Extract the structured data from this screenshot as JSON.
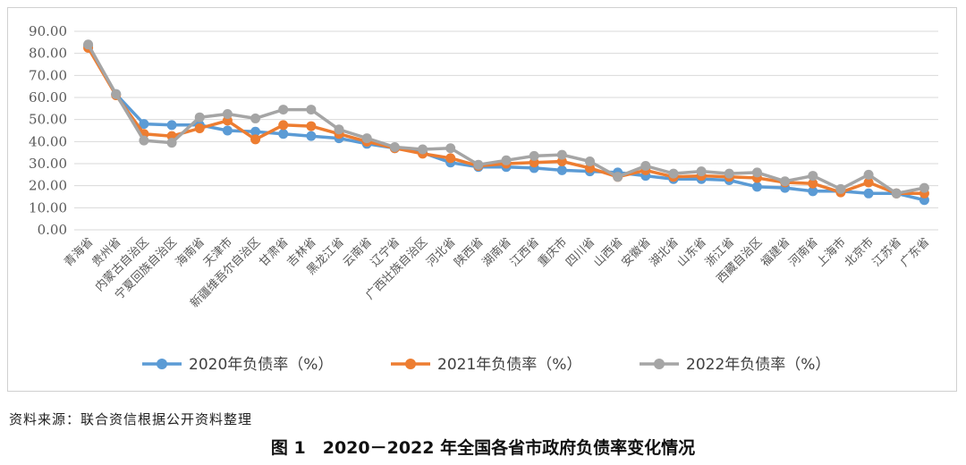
{
  "chart_data": {
    "type": "line",
    "ylim": [
      0,
      90
    ],
    "yticks": [
      "0.00",
      "10.00",
      "20.00",
      "30.00",
      "40.00",
      "50.00",
      "60.00",
      "70.00",
      "80.00",
      "90.00"
    ],
    "grid": true,
    "legend_position": "bottom",
    "categories": [
      "青海省",
      "贵州省",
      "内蒙古自治区",
      "宁夏回族自治区",
      "海南省",
      "天津市",
      "新疆维吾尔自治区",
      "甘肃省",
      "吉林省",
      "黑龙江省",
      "云南省",
      "辽宁省",
      "广西壮族自治区",
      "河北省",
      "陕西省",
      "湖南省",
      "江西省",
      "重庆市",
      "四川省",
      "山西省",
      "安徽省",
      "湖北省",
      "山东省",
      "浙江省",
      "西藏自治区",
      "福建省",
      "河南省",
      "上海市",
      "北京市",
      "江苏省",
      "广东省"
    ],
    "series": [
      {
        "name": "2020年负债率（%）",
        "color": "#5B9BD5",
        "values": [
          83.5,
          61.5,
          48.0,
          47.5,
          47.5,
          45.0,
          44.5,
          43.5,
          42.5,
          41.5,
          39.0,
          37.0,
          35.0,
          30.5,
          28.5,
          28.5,
          28.0,
          27.0,
          26.5,
          26.0,
          24.5,
          23.0,
          23.0,
          22.5,
          19.5,
          19.0,
          17.5,
          17.5,
          16.5,
          16.5,
          13.5
        ]
      },
      {
        "name": "2021年负债率（%）",
        "color": "#ED7D31",
        "values": [
          82.5,
          61.0,
          43.5,
          42.5,
          46.0,
          49.5,
          41.0,
          47.5,
          47.0,
          43.5,
          40.0,
          37.0,
          34.5,
          32.5,
          29.0,
          30.0,
          30.5,
          31.0,
          28.0,
          24.0,
          27.0,
          24.0,
          24.5,
          24.0,
          23.5,
          21.5,
          21.0,
          17.0,
          21.5,
          16.5,
          16.5
        ]
      },
      {
        "name": "2022年负债率（%）",
        "color": "#A5A5A5",
        "values": [
          84.0,
          61.5,
          40.5,
          39.5,
          51.0,
          52.5,
          50.5,
          54.5,
          54.5,
          45.5,
          41.5,
          37.5,
          36.5,
          37.0,
          29.5,
          31.5,
          33.5,
          34.0,
          31.0,
          24.0,
          29.0,
          25.5,
          26.5,
          25.5,
          26.0,
          22.0,
          24.5,
          18.5,
          25.0,
          16.5,
          19.0
        ]
      }
    ]
  },
  "source_note": "资料来源：联合资信根据公开资料整理",
  "caption": "图 1　2020－2022 年全国各省市政府负债率变化情况"
}
